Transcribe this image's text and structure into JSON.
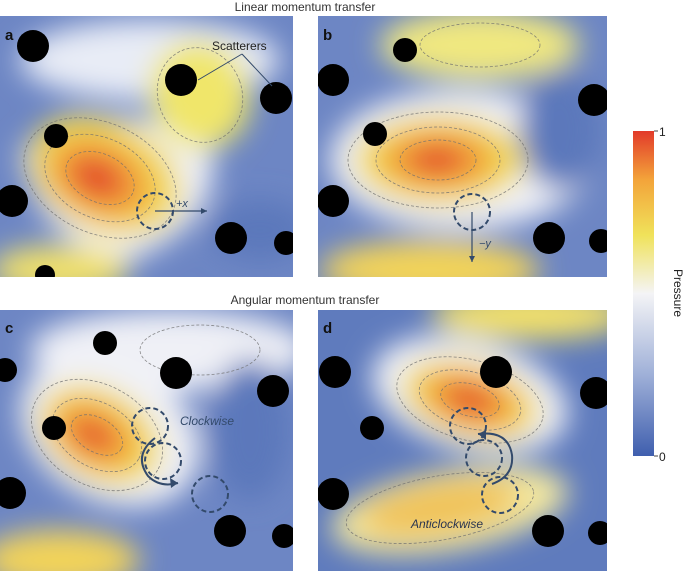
{
  "figure": {
    "top_heading": "Linear momentum transfer",
    "middle_heading": "Angular momentum transfer",
    "panels": [
      {
        "letter": "a",
        "annotations": [
          "Scatterers",
          "+x"
        ]
      },
      {
        "letter": "b",
        "annotations": [
          "−y"
        ]
      },
      {
        "letter": "c",
        "annotations": [
          "Clockwise"
        ]
      },
      {
        "letter": "d",
        "annotations": [
          "Anticlockwise"
        ]
      }
    ],
    "colorbar": {
      "label": "Pressure",
      "max_label": "1",
      "min_label": "0",
      "colors": [
        "#3f5fae",
        "#9fb0d8",
        "#f4f4f6",
        "#f0e25a",
        "#f3a43a",
        "#e23a2a"
      ]
    }
  },
  "chart_data": {
    "type": "heatmap",
    "title": "",
    "legend": "right",
    "colorbar_range": [
      0,
      1
    ],
    "colorbar_label": "Pressure"
  }
}
